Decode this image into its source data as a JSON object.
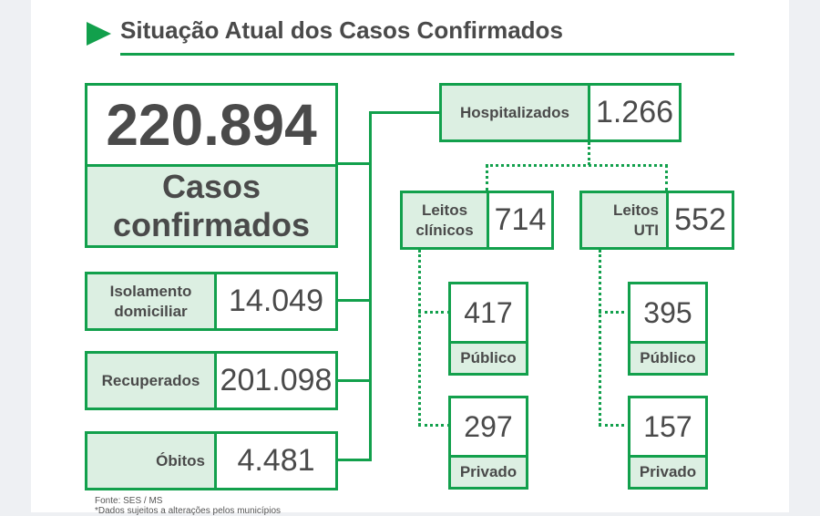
{
  "header": {
    "title": "Situação Atual dos Casos Confirmados"
  },
  "total": {
    "value": "220.894",
    "label_line1": "Casos",
    "label_line2": "confirmados"
  },
  "isolamento": {
    "label_line1": "Isolamento",
    "label_line2": "domiciliar",
    "value": "14.049"
  },
  "recuperados": {
    "label": "Recuperados",
    "value": "201.098"
  },
  "obitos": {
    "label": "Óbitos",
    "value": "4.481"
  },
  "hospitalizados": {
    "label": "Hospitalizados",
    "value": "1.266"
  },
  "leitos_clinicos": {
    "label_line1": "Leitos",
    "label_line2": "clínicos",
    "value": "714",
    "publico": {
      "value": "417",
      "label": "Público"
    },
    "privado": {
      "value": "297",
      "label": "Privado"
    }
  },
  "leitos_uti": {
    "label_line1": "Leitos",
    "label_line2": "UTI",
    "value": "552",
    "publico": {
      "value": "395",
      "label": "Público"
    },
    "privado": {
      "value": "157",
      "label": "Privado"
    }
  },
  "footer": {
    "source": "Fonte: SES / MS",
    "note": "*Dados sujeitos a alterações pelos municípios"
  },
  "colors": {
    "accent": "#12a04c",
    "fill": "#dcefe2",
    "text": "#4a4a4a"
  }
}
